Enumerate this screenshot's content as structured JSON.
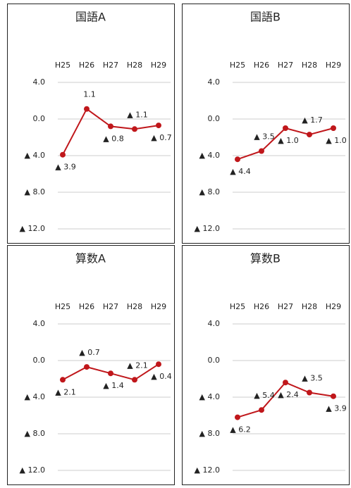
{
  "chart_data": [
    {
      "type": "line",
      "title": "国語A",
      "categories": [
        "H25",
        "H26",
        "H27",
        "H28",
        "H29"
      ],
      "values": [
        -3.9,
        1.1,
        -0.8,
        -1.1,
        -0.7
      ],
      "value_labels": [
        "▲ 3.9",
        "1.1",
        "▲ 0.8",
        "▲ 1.1",
        "▲ 0.7"
      ],
      "color": "#c0171b",
      "ylim": [
        -12,
        4
      ],
      "yticks": [
        {
          "value": 4,
          "label": "4.0"
        },
        {
          "value": 0,
          "label": "0.0"
        },
        {
          "value": -4,
          "label": "▲ 4.0"
        },
        {
          "value": -8,
          "label": "▲ 8.0"
        },
        {
          "value": -12,
          "label": "▲ 12.0"
        }
      ],
      "grid": true
    },
    {
      "type": "line",
      "title": "国語B",
      "categories": [
        "H25",
        "H26",
        "H27",
        "H28",
        "H29"
      ],
      "values": [
        -4.4,
        -3.5,
        -1.0,
        -1.7,
        -1.0
      ],
      "value_labels": [
        "▲ 4.4",
        "▲ 3.5",
        "▲ 1.0",
        "▲ 1.7",
        "▲ 1.0"
      ],
      "color": "#c0171b",
      "ylim": [
        -12,
        4
      ],
      "yticks": [
        {
          "value": 4,
          "label": "4.0"
        },
        {
          "value": 0,
          "label": "0.0"
        },
        {
          "value": -4,
          "label": "▲ 4.0"
        },
        {
          "value": -8,
          "label": "▲ 8.0"
        },
        {
          "value": -12,
          "label": "▲ 12.0"
        }
      ],
      "grid": true
    },
    {
      "type": "line",
      "title": "算数A",
      "categories": [
        "H25",
        "H26",
        "H27",
        "H28",
        "H29"
      ],
      "values": [
        -2.1,
        -0.7,
        -1.4,
        -2.1,
        -0.4
      ],
      "value_labels": [
        "▲ 2.1",
        "▲ 0.7",
        "▲ 1.4",
        "▲ 2.1",
        "▲ 0.4"
      ],
      "color": "#c0171b",
      "ylim": [
        -12,
        4
      ],
      "yticks": [
        {
          "value": 4,
          "label": "4.0"
        },
        {
          "value": 0,
          "label": "0.0"
        },
        {
          "value": -4,
          "label": "▲ 4.0"
        },
        {
          "value": -8,
          "label": "▲ 8.0"
        },
        {
          "value": -12,
          "label": "▲ 12.0"
        }
      ],
      "grid": true
    },
    {
      "type": "line",
      "title": "算数B",
      "categories": [
        "H25",
        "H26",
        "H27",
        "H28",
        "H29"
      ],
      "values": [
        -6.2,
        -5.4,
        -2.4,
        -3.5,
        -3.9
      ],
      "value_labels": [
        "▲ 6.2",
        "▲ 5.4",
        "▲ 2.4",
        "▲ 3.5",
        "▲ 3.9"
      ],
      "color": "#c0171b",
      "ylim": [
        -12,
        4
      ],
      "yticks": [
        {
          "value": 4,
          "label": "4.0"
        },
        {
          "value": 0,
          "label": "0.0"
        },
        {
          "value": -4,
          "label": "▲ 4.0"
        },
        {
          "value": -8,
          "label": "▲ 8.0"
        },
        {
          "value": -12,
          "label": "▲ 12.0"
        }
      ],
      "grid": true
    }
  ]
}
